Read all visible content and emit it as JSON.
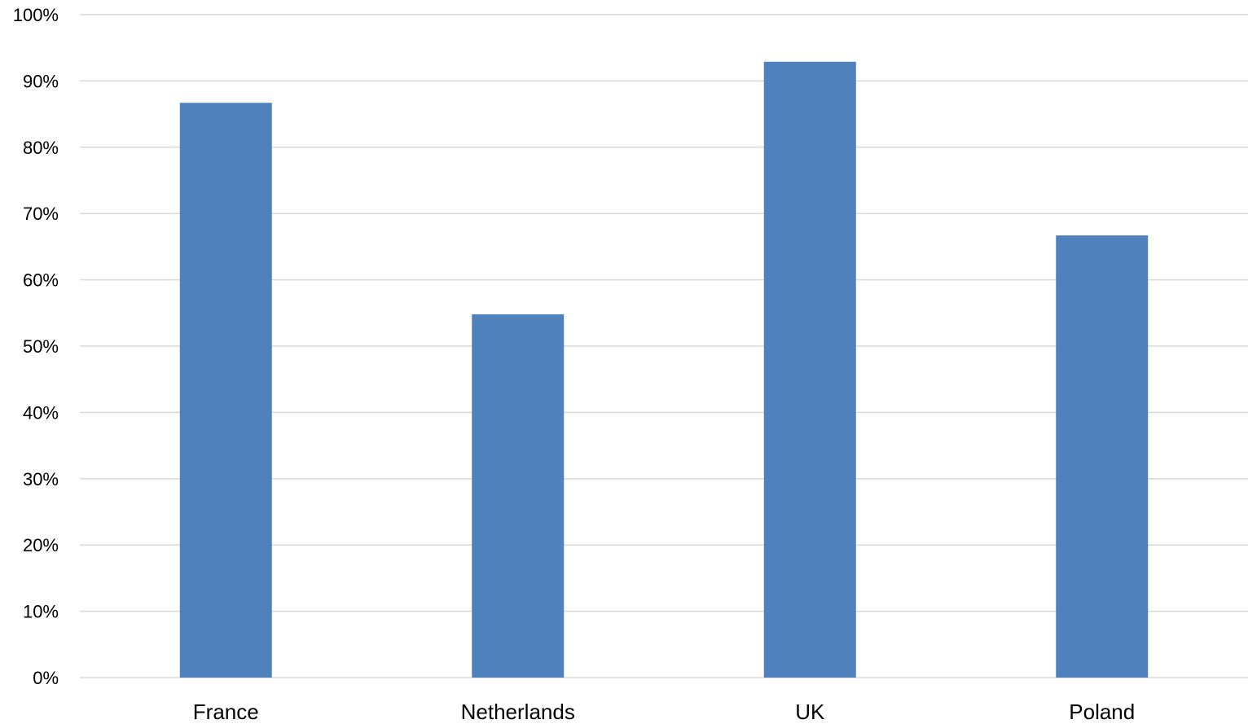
{
  "chart_data": {
    "type": "bar",
    "title": "",
    "xlabel": "",
    "ylabel": "",
    "categories": [
      "France",
      "Netherlands",
      "UK",
      "Poland"
    ],
    "values": [
      86.7,
      54.8,
      92.9,
      66.7
    ],
    "ylim": [
      0,
      100
    ],
    "y_ticks": [
      0,
      10,
      20,
      30,
      40,
      50,
      60,
      70,
      80,
      90,
      100
    ],
    "y_tick_format": "percent",
    "grid": true,
    "legend": "none",
    "bar_color": "#4f81bd",
    "gridline_color": "#d9d9d9"
  }
}
